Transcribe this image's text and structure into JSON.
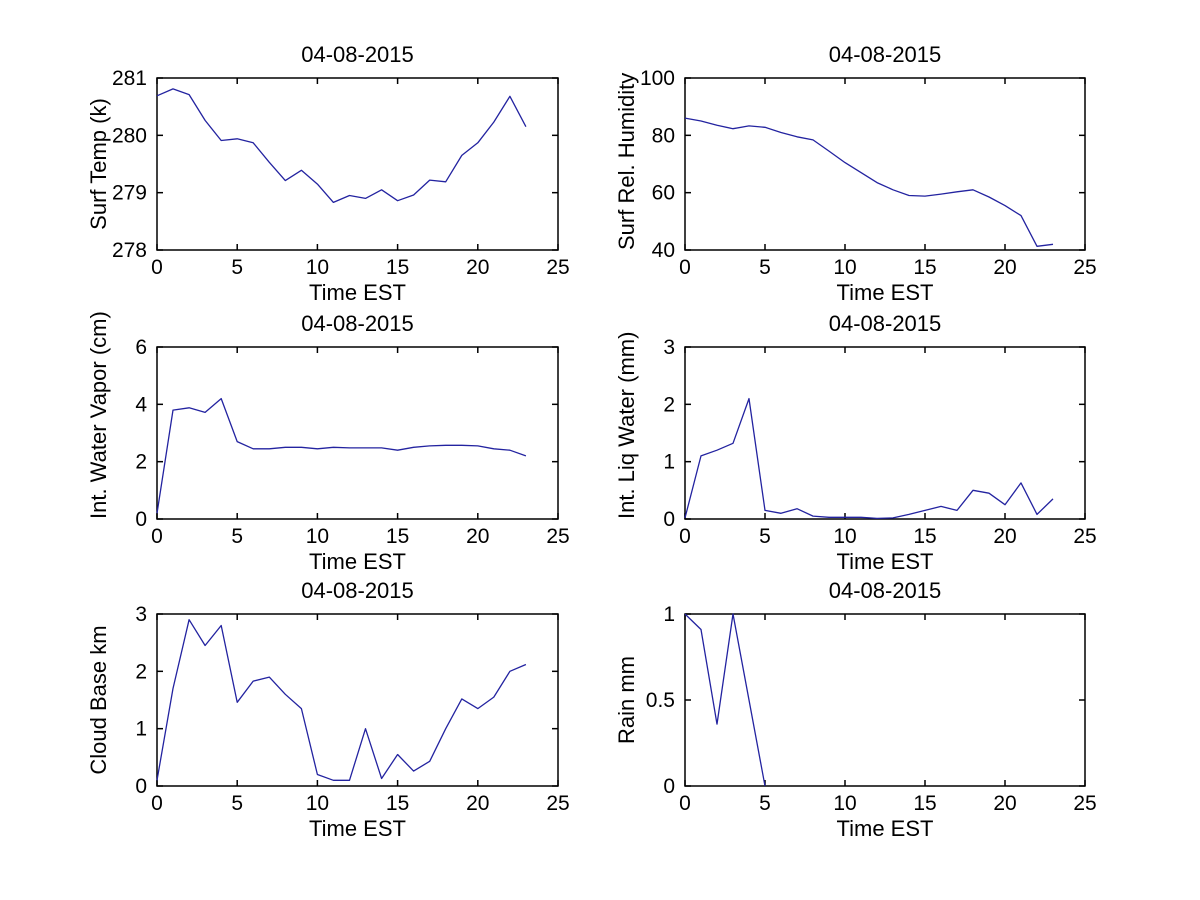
{
  "figure": {
    "background": "#ffffff",
    "axis_color": "#000000",
    "line_color": "#2323a0"
  },
  "chart_data": [
    {
      "type": "line",
      "title": "04-08-2015",
      "xlabel": "Time EST",
      "ylabel": "Surf Temp (k)",
      "xlim": [
        0,
        25
      ],
      "ylim": [
        278,
        281
      ],
      "xticks": [
        0,
        5,
        10,
        15,
        20,
        25
      ],
      "yticks": [
        278,
        279,
        280,
        281
      ],
      "grid": false,
      "legend": null,
      "x": [
        0,
        1,
        2,
        3,
        4,
        5,
        6,
        7,
        8,
        9,
        10,
        11,
        12,
        13,
        14,
        15,
        16,
        17,
        18,
        19,
        20,
        21,
        22,
        23
      ],
      "values": [
        280.69,
        280.81,
        280.71,
        280.26,
        279.91,
        279.94,
        279.87,
        279.53,
        279.21,
        279.39,
        279.15,
        278.83,
        278.95,
        278.9,
        279.05,
        278.86,
        278.96,
        279.22,
        279.19,
        279.65,
        279.87,
        280.23,
        280.68,
        280.15
      ]
    },
    {
      "type": "line",
      "title": "04-08-2015",
      "xlabel": "Time EST",
      "ylabel": "Surf Rel. Humidity",
      "xlim": [
        0,
        25
      ],
      "ylim": [
        40,
        100
      ],
      "xticks": [
        0,
        5,
        10,
        15,
        20,
        25
      ],
      "yticks": [
        40,
        60,
        80,
        100
      ],
      "grid": false,
      "legend": null,
      "x": [
        0,
        1,
        2,
        3,
        4,
        5,
        6,
        7,
        8,
        9,
        10,
        11,
        12,
        13,
        14,
        15,
        16,
        17,
        18,
        19,
        20,
        21,
        22,
        23
      ],
      "values": [
        86,
        85,
        83.5,
        82.3,
        83.3,
        82.8,
        81,
        79.5,
        78.4,
        74.5,
        70.5,
        67,
        63.5,
        61,
        59,
        58.8,
        59.5,
        60.3,
        61,
        58.5,
        55.5,
        52,
        41.3,
        42
      ]
    },
    {
      "type": "line",
      "title": "04-08-2015",
      "xlabel": "Time EST",
      "ylabel": "Int. Water Vapor (cm)",
      "xlim": [
        0,
        25
      ],
      "ylim": [
        0,
        6
      ],
      "xticks": [
        0,
        5,
        10,
        15,
        20,
        25
      ],
      "yticks": [
        0,
        2,
        4,
        6
      ],
      "grid": false,
      "legend": null,
      "x": [
        0,
        1,
        2,
        3,
        4,
        5,
        6,
        7,
        8,
        9,
        10,
        11,
        12,
        13,
        14,
        15,
        16,
        17,
        18,
        19,
        20,
        21,
        22,
        23
      ],
      "values": [
        0.2,
        3.8,
        3.88,
        3.72,
        4.2,
        2.7,
        2.45,
        2.45,
        2.5,
        2.5,
        2.45,
        2.5,
        2.48,
        2.48,
        2.48,
        2.4,
        2.5,
        2.55,
        2.57,
        2.57,
        2.55,
        2.45,
        2.4,
        2.2
      ]
    },
    {
      "type": "line",
      "title": "04-08-2015",
      "xlabel": "Time EST",
      "ylabel": "Int. Liq Water (mm)",
      "xlim": [
        0,
        25
      ],
      "ylim": [
        0,
        3
      ],
      "xticks": [
        0,
        5,
        10,
        15,
        20,
        25
      ],
      "yticks": [
        0,
        1,
        2,
        3
      ],
      "grid": false,
      "legend": null,
      "x": [
        0,
        1,
        2,
        3,
        4,
        5,
        6,
        7,
        8,
        9,
        10,
        11,
        12,
        13,
        14,
        15,
        16,
        17,
        18,
        19,
        20,
        21,
        22,
        23
      ],
      "values": [
        0.02,
        1.1,
        1.2,
        1.32,
        2.1,
        0.15,
        0.1,
        0.18,
        0.05,
        0.03,
        0.03,
        0.03,
        0.01,
        0.02,
        0.08,
        0.15,
        0.22,
        0.15,
        0.5,
        0.45,
        0.25,
        0.63,
        0.08,
        0.35
      ]
    },
    {
      "type": "line",
      "title": "04-08-2015",
      "xlabel": "Time EST",
      "ylabel": "Cloud Base km",
      "xlim": [
        0,
        25
      ],
      "ylim": [
        0,
        3
      ],
      "xticks": [
        0,
        5,
        10,
        15,
        20,
        25
      ],
      "yticks": [
        0,
        1,
        2,
        3
      ],
      "grid": false,
      "legend": null,
      "x": [
        0,
        1,
        2,
        3,
        4,
        5,
        6,
        7,
        8,
        9,
        10,
        11,
        12,
        13,
        14,
        15,
        16,
        17,
        18,
        19,
        20,
        21,
        22,
        23
      ],
      "values": [
        0.1,
        1.7,
        2.9,
        2.45,
        2.8,
        1.46,
        1.83,
        1.9,
        1.6,
        1.35,
        0.2,
        0.1,
        0.1,
        1.0,
        0.13,
        0.55,
        0.26,
        0.43,
        1.0,
        1.52,
        1.35,
        1.55,
        2.0,
        2.12
      ]
    },
    {
      "type": "line",
      "title": "04-08-2015",
      "xlabel": "Time EST",
      "ylabel": "Rain mm",
      "xlim": [
        0,
        25
      ],
      "ylim": [
        0,
        1
      ],
      "xticks": [
        0,
        5,
        10,
        15,
        20,
        25
      ],
      "yticks": [
        0,
        0.5,
        1
      ],
      "grid": false,
      "legend": null,
      "x": [
        0,
        1,
        2,
        3,
        4,
        5
      ],
      "values": [
        1.0,
        0.91,
        0.36,
        1.0,
        0.5,
        0.0
      ]
    }
  ]
}
